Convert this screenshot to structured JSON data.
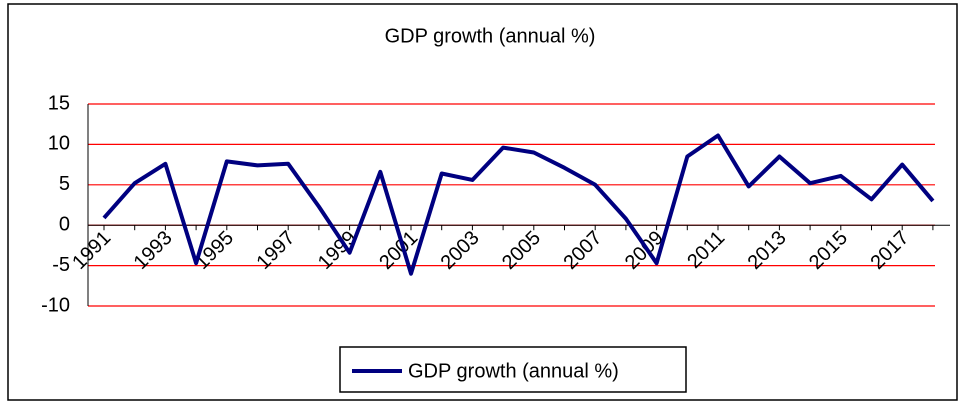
{
  "chart_data": {
    "type": "line",
    "title": "GDP growth (annual %)",
    "categories": [
      "1991",
      null,
      "1993",
      null,
      "1995",
      null,
      "1997",
      null,
      "1999",
      null,
      "2001",
      null,
      "2003",
      null,
      "2005",
      null,
      "2007",
      null,
      "2009",
      null,
      "2011",
      null,
      "2013",
      null,
      "2015",
      null,
      "2017",
      null
    ],
    "series": [
      {
        "name": "GDP growth (annual %)",
        "color": "#000080",
        "values": [
          0.9,
          5.2,
          7.6,
          -4.7,
          7.9,
          7.4,
          7.6,
          2.3,
          -3.4,
          6.6,
          -6.0,
          6.4,
          5.6,
          9.6,
          9.0,
          7.1,
          5.0,
          0.8,
          -4.7,
          8.5,
          11.1,
          4.8,
          8.5,
          5.2,
          6.1,
          3.2,
          7.5,
          3.0
        ]
      }
    ],
    "ylim": [
      -10,
      15
    ],
    "yticks": [
      -10,
      -5,
      0,
      5,
      10,
      15
    ],
    "grid": true,
    "grid_color": "#ff0000"
  }
}
